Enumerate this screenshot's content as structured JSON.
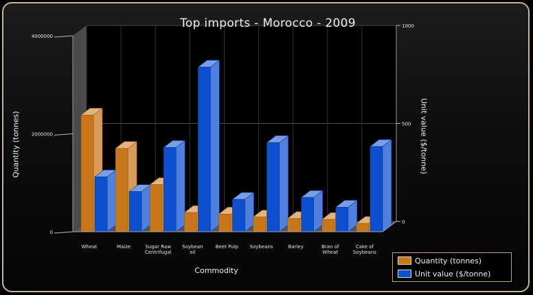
{
  "chart_data": {
    "type": "bar",
    "title": "Top imports - Morocco - 2009",
    "xlabel": "Commodity",
    "ylabel_left": "Quantity (tonnes)",
    "ylabel_right": "Unit value ($/tonne)",
    "categories": [
      [
        "Wheat"
      ],
      [
        "Maize"
      ],
      [
        "Sugar Raw",
        "Centrifugal"
      ],
      [
        "Soybean",
        "oil"
      ],
      [
        "Beet Pulp"
      ],
      [
        "Soybeans"
      ],
      [
        "Barley"
      ],
      [
        "Bran of",
        "Wheat"
      ],
      [
        "Cake of",
        "Soybeans"
      ]
    ],
    "y_left": {
      "ylim": [
        0,
        4000000
      ],
      "ticks": [
        "0",
        "2000000",
        "4000000"
      ]
    },
    "y_right": {
      "ylim": [
        0,
        1000
      ],
      "ticks": [
        "0",
        "500",
        "1000"
      ]
    },
    "series": [
      {
        "name": "Quantity (tonnes)",
        "axis": "left",
        "color": "#c8761a",
        "values": [
          2380000,
          1700000,
          960000,
          390000,
          360000,
          300000,
          270000,
          250000,
          170000
        ]
      },
      {
        "name": "Unit value ($/tonne)",
        "axis": "right",
        "color": "#0c4fcf",
        "values": [
          280,
          205,
          430,
          840,
          165,
          455,
          175,
          125,
          435
        ]
      }
    ],
    "grid": true,
    "legend_position": "bottom-right"
  }
}
